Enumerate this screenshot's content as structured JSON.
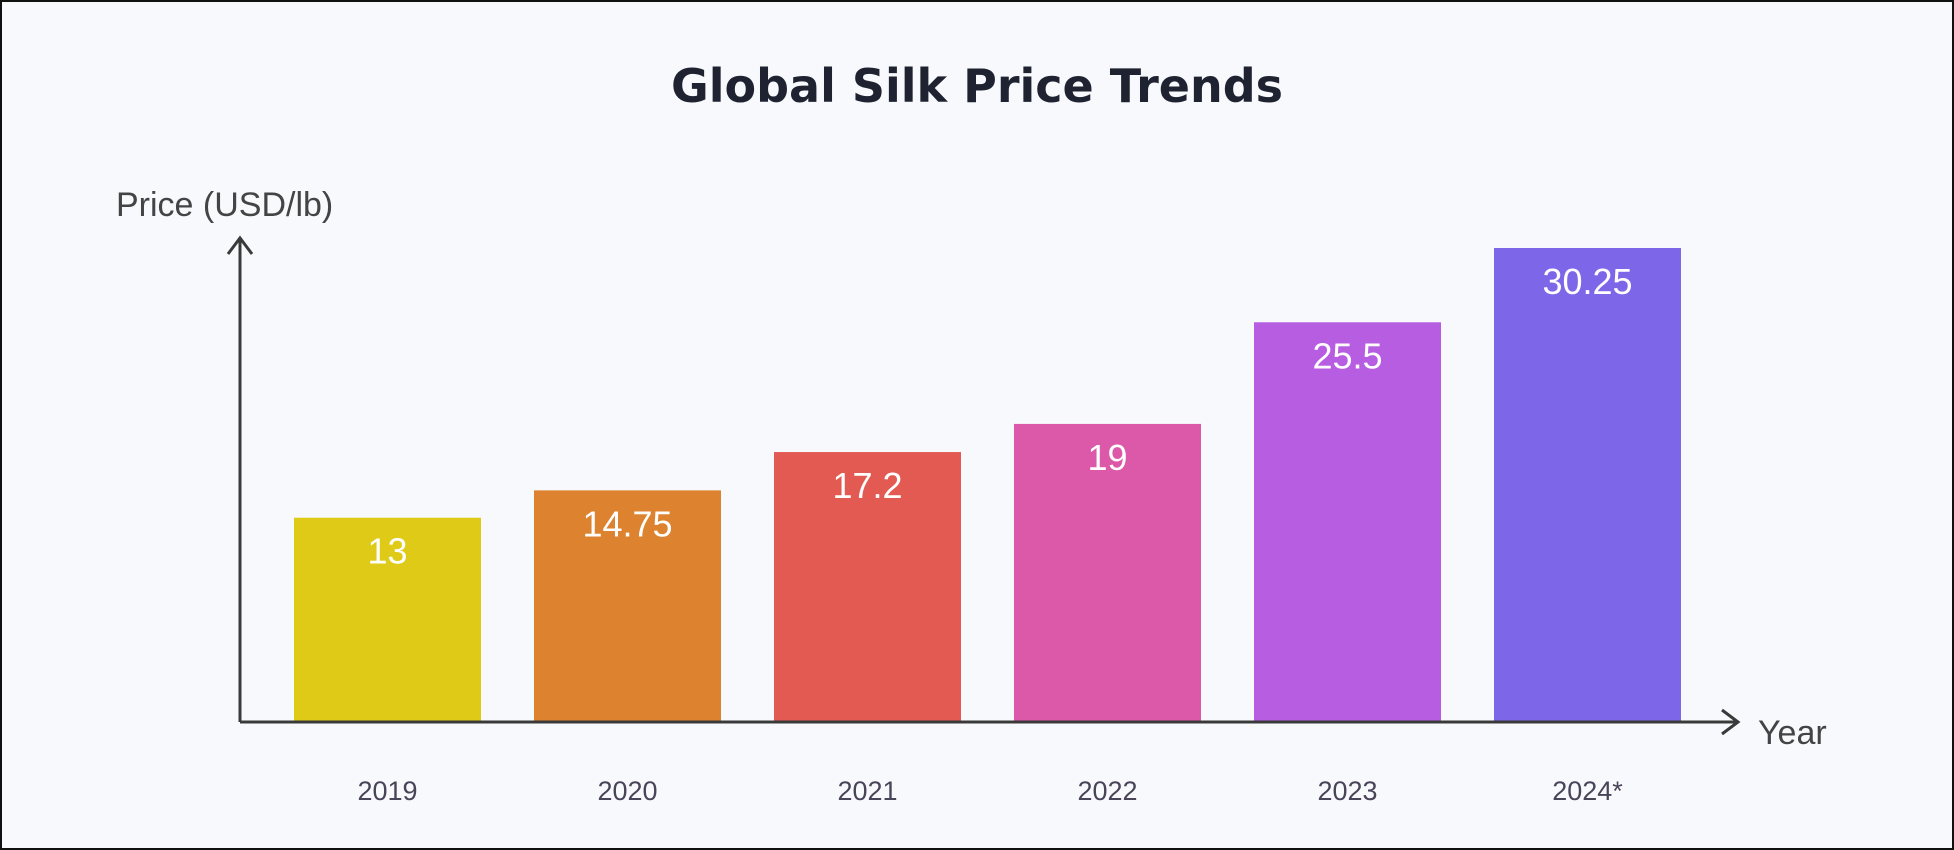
{
  "chart_data": {
    "type": "bar",
    "title": "Global Silk Price Trends",
    "xlabel": "Year",
    "ylabel": "Price (USD/lb)",
    "categories": [
      "2019",
      "2020",
      "2021",
      "2022",
      "2023",
      "2024*"
    ],
    "values": [
      13,
      14.75,
      17.2,
      19,
      25.5,
      30.25
    ],
    "value_labels": [
      "13",
      "14.75",
      "17.2",
      "19",
      "25.5",
      "30.25"
    ],
    "colors": [
      "#dfcb17",
      "#dd8330",
      "#e35a53",
      "#dc58a8",
      "#b75de2",
      "#7e66e8"
    ],
    "ylim": [
      0,
      30.25
    ],
    "grid": false,
    "legend": "none"
  }
}
